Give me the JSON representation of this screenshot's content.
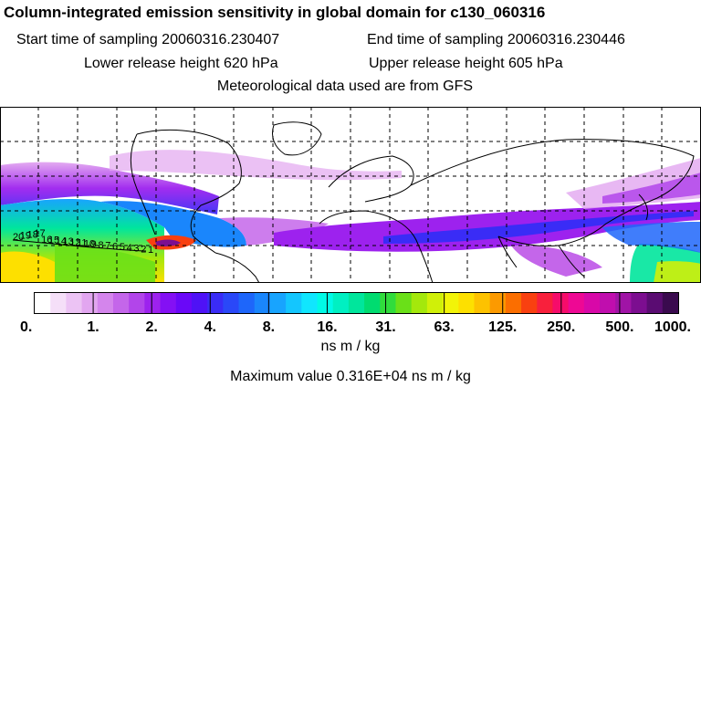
{
  "title": "Column-integrated emission sensitivity in global domain for c130_060316",
  "sampling": {
    "start_label": "Start time of sampling 20060316.230407",
    "end_label": "End time of sampling 20060316.230446"
  },
  "release": {
    "lower_label": "Lower release height  620 hPa",
    "upper_label": "Upper release height  605 hPa"
  },
  "met_label": "Meteorological data used are from GFS",
  "colorbar": {
    "colors": [
      "#ffffff",
      "#f5dff8",
      "#ecc3f4",
      "#e2a6f0",
      "#d485ec",
      "#c466ea",
      "#b245ea",
      "#9d22ee",
      "#8410f4",
      "#6a08f8",
      "#4f12f6",
      "#3a2cf6",
      "#2a48f8",
      "#1e66fa",
      "#1a86fc",
      "#18a4fe",
      "#14c6fe",
      "#10e6fe",
      "#00fae6",
      "#00f0c2",
      "#00e69c",
      "#00dc70",
      "#30dc3c",
      "#6ae018",
      "#a4e80c",
      "#d0f008",
      "#f2f408",
      "#fde000",
      "#fdc200",
      "#fc9a00",
      "#fb6e00",
      "#f94010",
      "#f8203c",
      "#f60c6a",
      "#ee0894",
      "#d808a8",
      "#c00eae",
      "#a014a6",
      "#7c0e90",
      "#5a0c72",
      "#3a0a4e"
    ],
    "tick_labels": [
      "0.",
      "1.",
      "2.",
      "4.",
      "8.",
      "16.",
      "31.",
      "63.",
      "125.",
      "250.",
      "500.",
      "1000."
    ]
  },
  "units": "ns m / kg",
  "max_value_label": "Maximum value  0.316E+04 ns m / kg",
  "trajectory_labels": [
    "20",
    "19",
    "18",
    "17",
    "16",
    "15",
    "14",
    "13",
    "12",
    "11",
    "10",
    "9",
    "8",
    "7",
    "6",
    "5",
    "4",
    "3",
    "2",
    "1"
  ]
}
